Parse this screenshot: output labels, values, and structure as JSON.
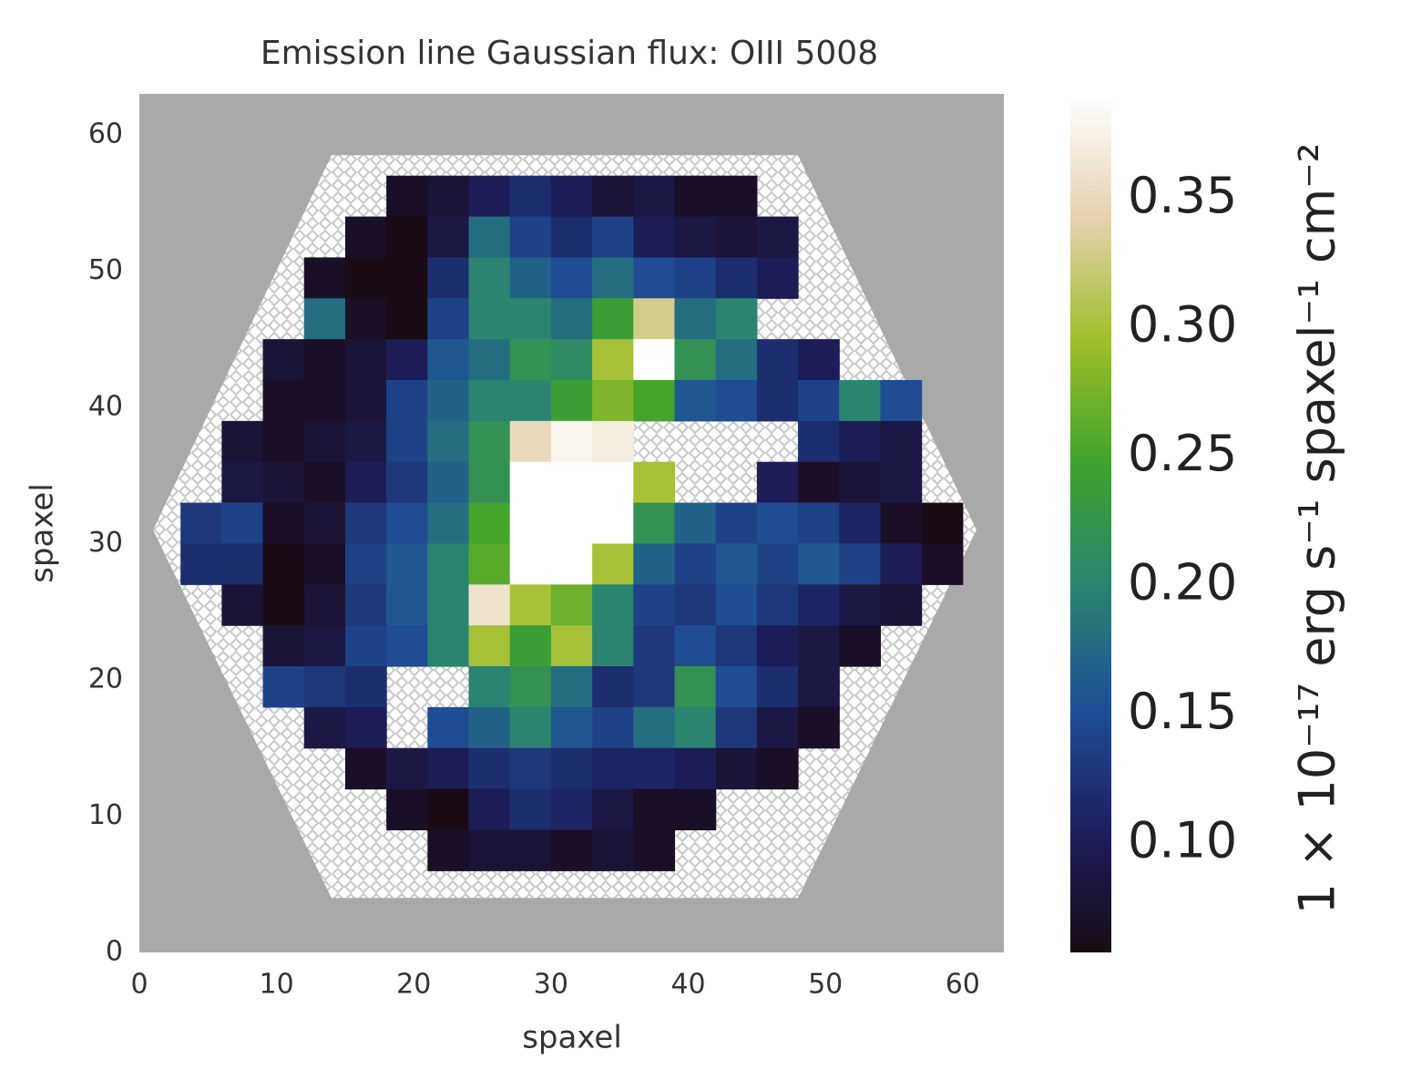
{
  "chart_data": {
    "type": "heatmap",
    "title": "Emission line Gaussian flux: OIII 5008",
    "x_label": "spaxel",
    "y_label": "spaxel",
    "colorbar_label": "1 × 10⁻¹⁷ erg s⁻¹ spaxel⁻¹ cm⁻²",
    "xlim": [
      0,
      63
    ],
    "ylim": [
      0,
      63
    ],
    "xticks": [
      0,
      10,
      20,
      30,
      40,
      50,
      60
    ],
    "yticks": [
      0,
      10,
      20,
      30,
      40,
      50,
      60
    ],
    "clim": [
      0.058,
      0.39
    ],
    "cticks": [
      {
        "value": 0.1,
        "label": "0.10"
      },
      0.15,
      {
        "value": 0.2,
        "label": "0.20"
      },
      0.25,
      {
        "value": 0.3,
        "label": "0.30"
      },
      0.35
    ],
    "colormap": [
      "#1a0a14",
      "#1c1f5e",
      "#1f4f96",
      "#2a8470",
      "#3fa32c",
      "#9fbf2a",
      "#e6d2b0",
      "#ffffff"
    ],
    "background": "#a9a9a9",
    "grid": false,
    "x": [
      1.5,
      4.5,
      7.5,
      10.5,
      13.5,
      16.5,
      19.5,
      22.5,
      25.5,
      28.5,
      31.5,
      34.5,
      37.5,
      40.5,
      43.5,
      46.5,
      49.5,
      52.5,
      55.5,
      58.5,
      61.5
    ],
    "y": [
      61.5,
      58.5,
      55.5,
      52.5,
      49.5,
      46.5,
      43.5,
      40.5,
      37.5,
      34.5,
      31.5,
      28.5,
      25.5,
      22.5,
      19.5,
      16.5,
      13.5,
      10.5,
      7.5,
      4.5,
      1.5
    ],
    "values": [
      [
        null,
        null,
        null,
        null,
        null,
        null,
        null,
        null,
        null,
        null,
        null,
        null,
        null,
        null,
        null,
        null,
        null,
        null,
        null,
        null,
        null
      ],
      [
        null,
        null,
        null,
        null,
        null,
        null,
        null,
        null,
        null,
        null,
        null,
        null,
        null,
        null,
        null,
        null,
        null,
        null,
        null,
        null,
        null
      ],
      [
        null,
        null,
        null,
        null,
        null,
        null,
        0.07,
        0.08,
        0.1,
        0.12,
        0.1,
        0.08,
        0.09,
        0.07,
        0.07,
        null,
        null,
        null,
        null,
        null,
        null
      ],
      [
        null,
        null,
        null,
        null,
        null,
        0.07,
        0.06,
        0.09,
        0.18,
        0.14,
        0.12,
        0.14,
        0.1,
        0.09,
        0.08,
        0.09,
        null,
        null,
        null,
        null,
        null
      ],
      [
        null,
        null,
        null,
        null,
        0.07,
        0.06,
        0.06,
        0.12,
        0.2,
        0.17,
        0.15,
        0.18,
        0.15,
        0.14,
        0.12,
        0.1,
        null,
        null,
        null,
        null,
        null
      ],
      [
        null,
        null,
        null,
        null,
        0.18,
        0.07,
        0.06,
        0.14,
        0.2,
        0.2,
        0.18,
        0.24,
        0.33,
        0.18,
        0.2,
        null,
        null,
        null,
        null,
        null,
        null
      ],
      [
        null,
        null,
        null,
        0.08,
        0.07,
        0.08,
        0.1,
        0.16,
        0.18,
        0.22,
        0.21,
        0.3,
        0.39,
        0.22,
        0.18,
        0.12,
        0.1,
        null,
        null,
        null,
        null
      ],
      [
        null,
        null,
        null,
        0.07,
        0.07,
        0.08,
        0.14,
        0.17,
        0.2,
        0.2,
        0.24,
        0.28,
        0.25,
        0.16,
        0.15,
        0.12,
        0.14,
        0.2,
        0.15,
        null,
        null
      ],
      [
        null,
        null,
        0.08,
        0.07,
        0.08,
        0.09,
        0.14,
        0.18,
        0.22,
        0.35,
        0.38,
        0.37,
        null,
        null,
        null,
        null,
        0.12,
        0.1,
        0.09,
        null,
        null
      ],
      [
        null,
        null,
        0.09,
        0.08,
        0.07,
        0.1,
        0.13,
        0.17,
        0.22,
        0.39,
        0.39,
        0.39,
        0.3,
        null,
        null,
        0.1,
        0.07,
        0.08,
        0.09,
        null,
        null
      ],
      [
        null,
        0.13,
        0.14,
        0.07,
        0.08,
        0.13,
        0.15,
        0.18,
        0.25,
        0.39,
        0.39,
        0.39,
        0.22,
        0.17,
        0.14,
        0.15,
        0.14,
        0.11,
        0.07,
        0.06,
        null
      ],
      [
        null,
        0.12,
        0.12,
        0.06,
        0.07,
        0.14,
        0.16,
        0.2,
        0.26,
        0.39,
        0.39,
        0.3,
        0.17,
        0.14,
        0.16,
        0.14,
        0.16,
        0.14,
        0.1,
        0.07,
        null
      ],
      [
        null,
        null,
        0.08,
        0.06,
        0.08,
        0.13,
        0.16,
        0.2,
        0.36,
        0.3,
        0.27,
        0.2,
        0.14,
        0.13,
        0.15,
        0.13,
        0.11,
        0.09,
        0.08,
        null,
        null
      ],
      [
        null,
        null,
        null,
        0.08,
        0.09,
        0.14,
        0.15,
        0.2,
        0.3,
        0.24,
        0.3,
        0.2,
        0.13,
        0.15,
        0.13,
        0.1,
        0.09,
        0.07,
        null,
        null,
        null
      ],
      [
        null,
        null,
        null,
        0.14,
        0.13,
        0.12,
        null,
        null,
        0.2,
        0.22,
        0.18,
        0.12,
        0.13,
        0.22,
        0.15,
        0.12,
        0.09,
        null,
        null,
        null,
        null
      ],
      [
        null,
        null,
        null,
        null,
        0.09,
        0.1,
        null,
        0.15,
        0.17,
        0.2,
        0.16,
        0.14,
        0.18,
        0.2,
        0.13,
        0.09,
        0.07,
        null,
        null,
        null,
        null
      ],
      [
        null,
        null,
        null,
        null,
        null,
        0.07,
        0.09,
        0.1,
        0.12,
        0.13,
        0.12,
        0.11,
        0.11,
        0.1,
        0.08,
        0.07,
        null,
        null,
        null,
        null,
        null
      ],
      [
        null,
        null,
        null,
        null,
        null,
        null,
        0.07,
        0.06,
        0.1,
        0.12,
        0.11,
        0.09,
        0.07,
        0.07,
        null,
        null,
        null,
        null,
        null,
        null,
        null
      ],
      [
        null,
        null,
        null,
        null,
        null,
        null,
        null,
        0.07,
        0.08,
        0.08,
        0.07,
        0.08,
        0.07,
        null,
        null,
        null,
        null,
        null,
        null,
        null,
        null
      ],
      [
        null,
        null,
        null,
        null,
        null,
        null,
        null,
        null,
        null,
        null,
        null,
        null,
        null,
        null,
        null,
        null,
        null,
        null,
        null,
        null,
        null
      ],
      [
        null,
        null,
        null,
        null,
        null,
        null,
        null,
        null,
        null,
        null,
        null,
        null,
        null,
        null,
        null,
        null,
        null,
        null,
        null,
        null,
        null
      ]
    ]
  }
}
